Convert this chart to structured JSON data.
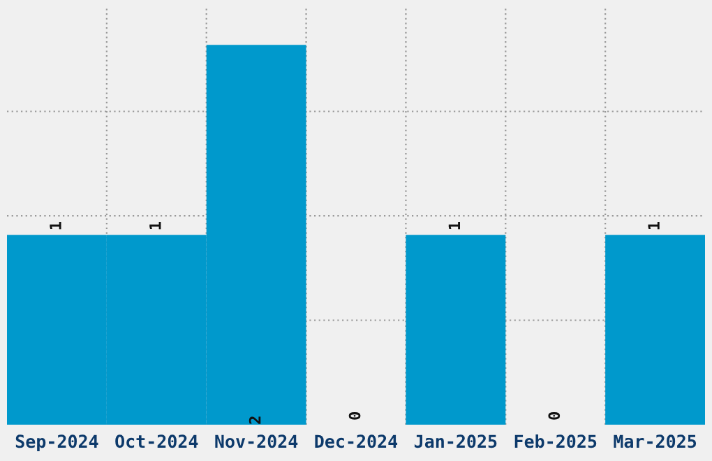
{
  "chart_data": {
    "type": "bar",
    "categories": [
      "Sep-2024",
      "Oct-2024",
      "Nov-2024",
      "Dec-2024",
      "Jan-2025",
      "Feb-2025",
      "Mar-2025"
    ],
    "values": [
      1,
      1,
      2,
      0,
      1,
      0,
      1
    ],
    "color": "#0099cc",
    "ylim": [
      0,
      2.2
    ],
    "yticks": [
      {
        "value": 0.55,
        "label": null
      },
      {
        "value": 1.1,
        "label": null
      },
      {
        "value": 1.65,
        "label": null
      }
    ],
    "tick_labels": "x",
    "grid": true,
    "data_labels": true
  }
}
